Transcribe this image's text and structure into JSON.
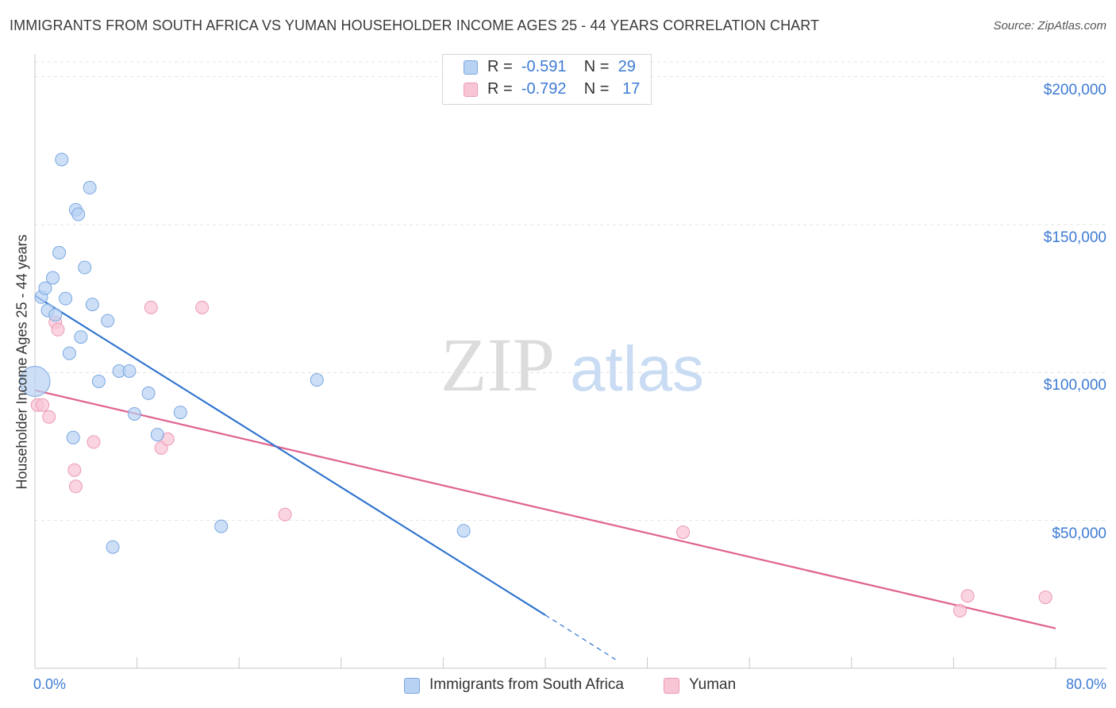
{
  "header": {
    "title": "IMMIGRANTS FROM SOUTH AFRICA VS YUMAN HOUSEHOLDER INCOME AGES 25 - 44 YEARS CORRELATION CHART",
    "source": "Source: ZipAtlas.com"
  },
  "watermark": {
    "zip": "ZIP",
    "atlas": "atlas"
  },
  "legend": {
    "rows": [
      {
        "r_label": "R =",
        "r_value": "-0.591",
        "n_label": "N =",
        "n_value": "29",
        "color": "#a9c8f0"
      },
      {
        "r_label": "R =",
        "r_value": "-0.792",
        "n_label": "N =",
        "n_value": "17",
        "color": "#f5b8cb"
      }
    ]
  },
  "colors": {
    "series1_fill": "#b8d2f3",
    "series1_stroke": "#7aa7e0",
    "series1_line": "#2f74d0",
    "series2_fill": "#f8c5d5",
    "series2_stroke": "#ec9ab5",
    "series2_line": "#e0628f",
    "axis_text": "#3d7bd4"
  },
  "chart_data": {
    "type": "scatter",
    "title": "IMMIGRANTS FROM SOUTH AFRICA VS YUMAN HOUSEHOLDER INCOME AGES 25 - 44 YEARS CORRELATION CHART",
    "xlabel": "",
    "ylabel": "Householder Income Ages 25 - 44 years",
    "x_tick_labels": [
      "0.0%",
      "80.0%"
    ],
    "y_tick_labels": [
      "$50,000",
      "$100,000",
      "$150,000",
      "$200,000"
    ],
    "y_ticks": [
      50000,
      100000,
      150000,
      200000
    ],
    "xlim": [
      0,
      80
    ],
    "ylim": [
      0,
      205000
    ],
    "grid": true,
    "legend_position": "top-center",
    "series": [
      {
        "name": "Immigrants from South Africa",
        "r": -0.591,
        "n": 29,
        "points": [
          [
            0.5,
            125500
          ],
          [
            0.8,
            128500
          ],
          [
            1.0,
            121000
          ],
          [
            1.4,
            132000
          ],
          [
            1.6,
            119500
          ],
          [
            1.9,
            140500
          ],
          [
            2.1,
            172000
          ],
          [
            2.4,
            125000
          ],
          [
            2.7,
            106500
          ],
          [
            3.0,
            78000
          ],
          [
            3.2,
            155000
          ],
          [
            3.4,
            153500
          ],
          [
            3.6,
            112000
          ],
          [
            3.9,
            135500
          ],
          [
            4.3,
            162500
          ],
          [
            4.5,
            123000
          ],
          [
            5.0,
            97000
          ],
          [
            5.7,
            117500
          ],
          [
            6.1,
            41000
          ],
          [
            6.6,
            100500
          ],
          [
            7.4,
            100500
          ],
          [
            7.8,
            86000
          ],
          [
            8.9,
            93000
          ],
          [
            9.6,
            79000
          ],
          [
            11.4,
            86500
          ],
          [
            14.6,
            48000
          ],
          [
            22.1,
            97500
          ],
          [
            33.6,
            46500
          ],
          [
            0.0,
            97000
          ]
        ],
        "trend": {
          "x0": 0.0,
          "y0": 126000,
          "x1": 40.0,
          "y1": 18000,
          "dash_to_x": 45.5,
          "dash_to_y": 3000
        }
      },
      {
        "name": "Yuman",
        "r": -0.792,
        "n": 17,
        "points": [
          [
            0.2,
            89000
          ],
          [
            0.6,
            89000
          ],
          [
            1.1,
            85000
          ],
          [
            1.6,
            117000
          ],
          [
            1.8,
            114500
          ],
          [
            3.1,
            67000
          ],
          [
            3.2,
            61500
          ],
          [
            4.6,
            76500
          ],
          [
            9.1,
            122000
          ],
          [
            9.9,
            74500
          ],
          [
            10.4,
            77500
          ],
          [
            13.1,
            122000
          ],
          [
            19.6,
            52000
          ],
          [
            50.8,
            46000
          ],
          [
            73.1,
            24500
          ],
          [
            72.5,
            19500
          ],
          [
            79.2,
            24000
          ]
        ],
        "trend": {
          "x0": 0.0,
          "y0": 94000,
          "x1": 80.0,
          "y1": 13500
        }
      }
    ]
  },
  "bottom_legend": {
    "items": [
      {
        "label": "Immigrants from South Africa"
      },
      {
        "label": "Yuman"
      }
    ]
  }
}
